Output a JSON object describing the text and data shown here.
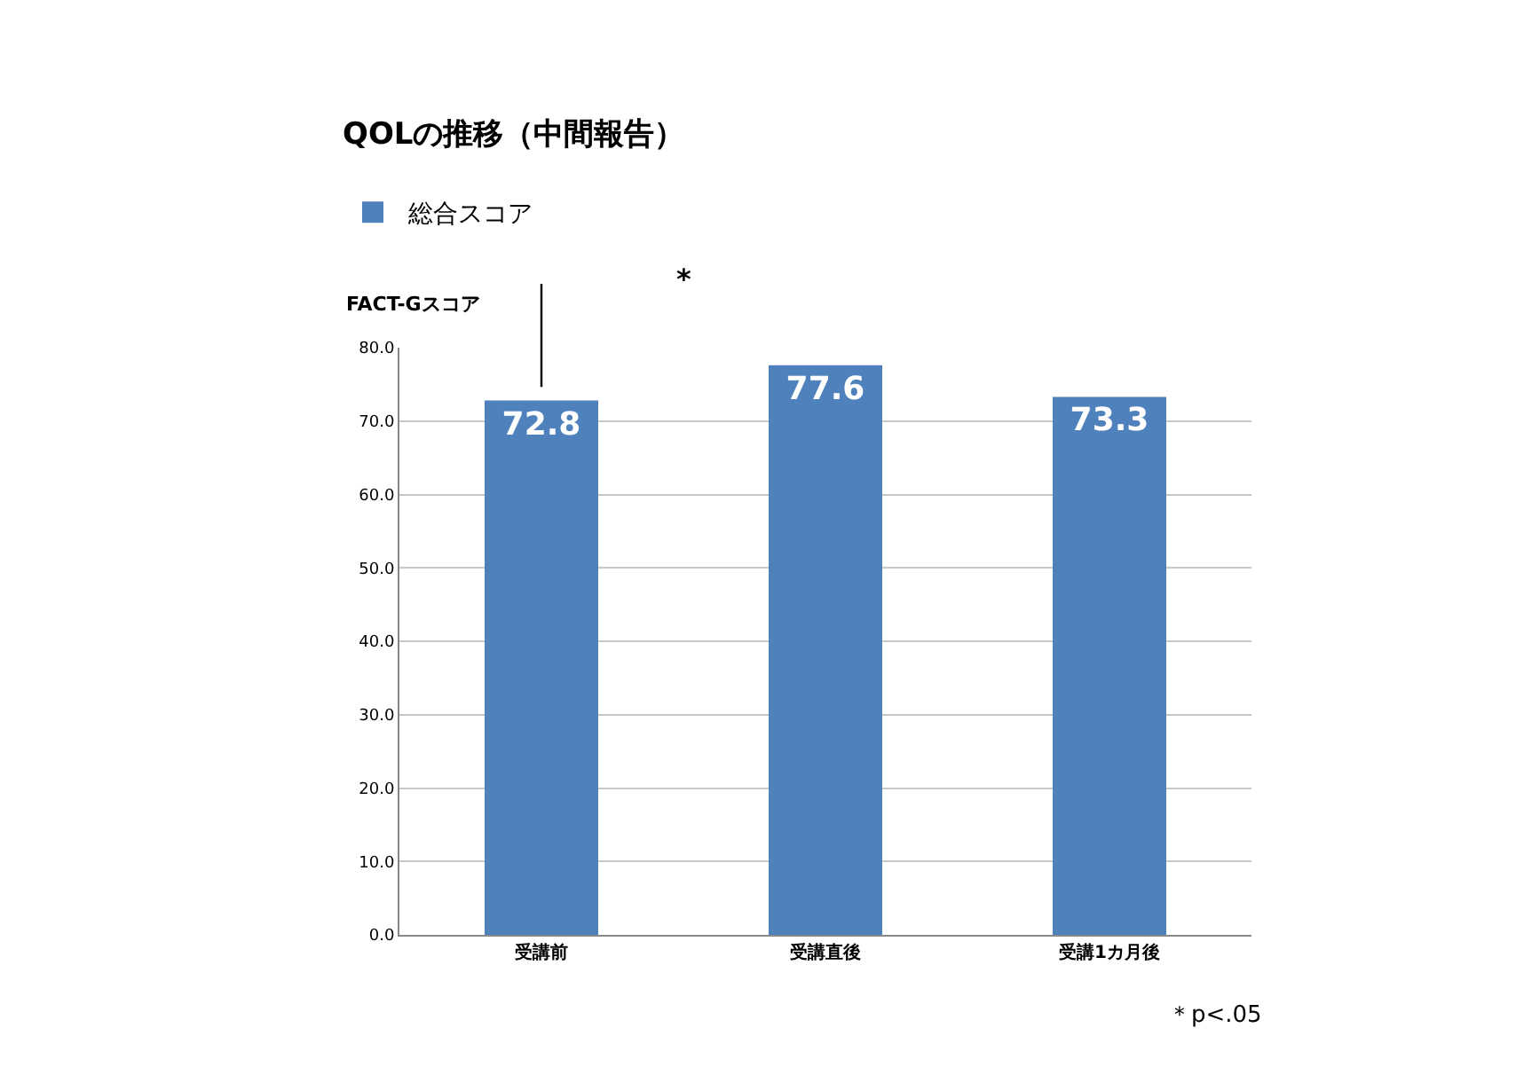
{
  "chart_data": {
    "type": "bar",
    "title": "QOLの推移（中間報告）",
    "ylabel": "FACT-Gスコア",
    "categories": [
      "受講前",
      "受講直後",
      "受講1カ月後"
    ],
    "series": [
      {
        "name": "総合スコア",
        "color": "#4f81bd",
        "values": [
          72.8,
          77.6,
          73.3
        ]
      }
    ],
    "ylim": [
      0,
      80
    ],
    "yticks": [
      {
        "value": 0,
        "label": "0.0"
      },
      {
        "value": 10,
        "label": "10.0"
      },
      {
        "value": 20,
        "label": "20.0"
      },
      {
        "value": 30,
        "label": "30.0"
      },
      {
        "value": 40,
        "label": "40.0"
      },
      {
        "value": 50,
        "label": "50.0"
      },
      {
        "value": 60,
        "label": "60.0"
      },
      {
        "value": 70,
        "label": "70.0"
      },
      {
        "value": 80,
        "label": "80.0"
      }
    ],
    "grid": "y",
    "legend": "top left",
    "data_labels": true,
    "annotations": [
      "*",
      "＊p<.05"
    ]
  }
}
